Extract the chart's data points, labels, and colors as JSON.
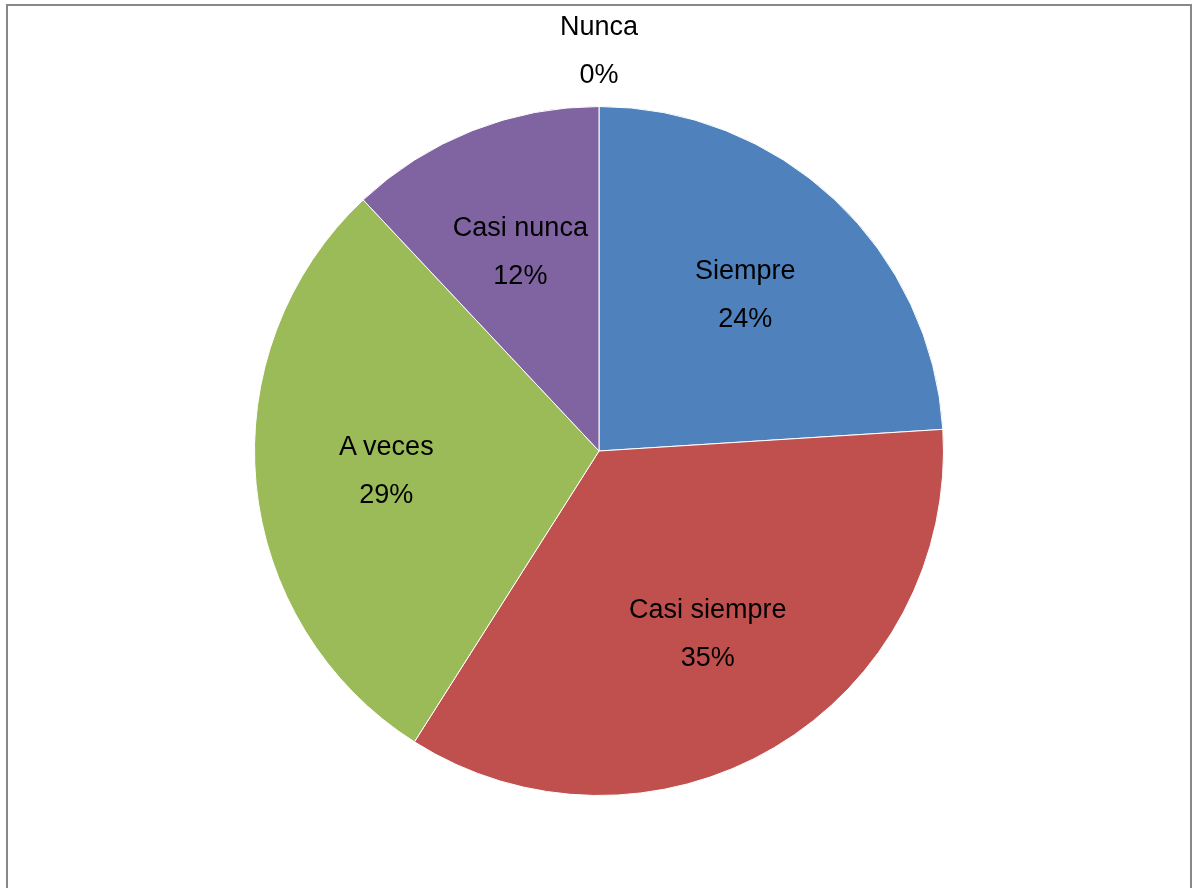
{
  "chart_data": {
    "type": "pie",
    "categories": [
      "Siempre",
      "Casi siempre",
      "A veces",
      "Casi nunca",
      "Nunca"
    ],
    "values": [
      24,
      35,
      29,
      12,
      0
    ],
    "value_labels": [
      "24%",
      "35%",
      "29%",
      "12%",
      "0%"
    ],
    "colors": [
      "#4f81bd",
      "#c0504d",
      "#9bbb59",
      "#8064a2",
      "#4bacc6"
    ],
    "legend": false
  }
}
